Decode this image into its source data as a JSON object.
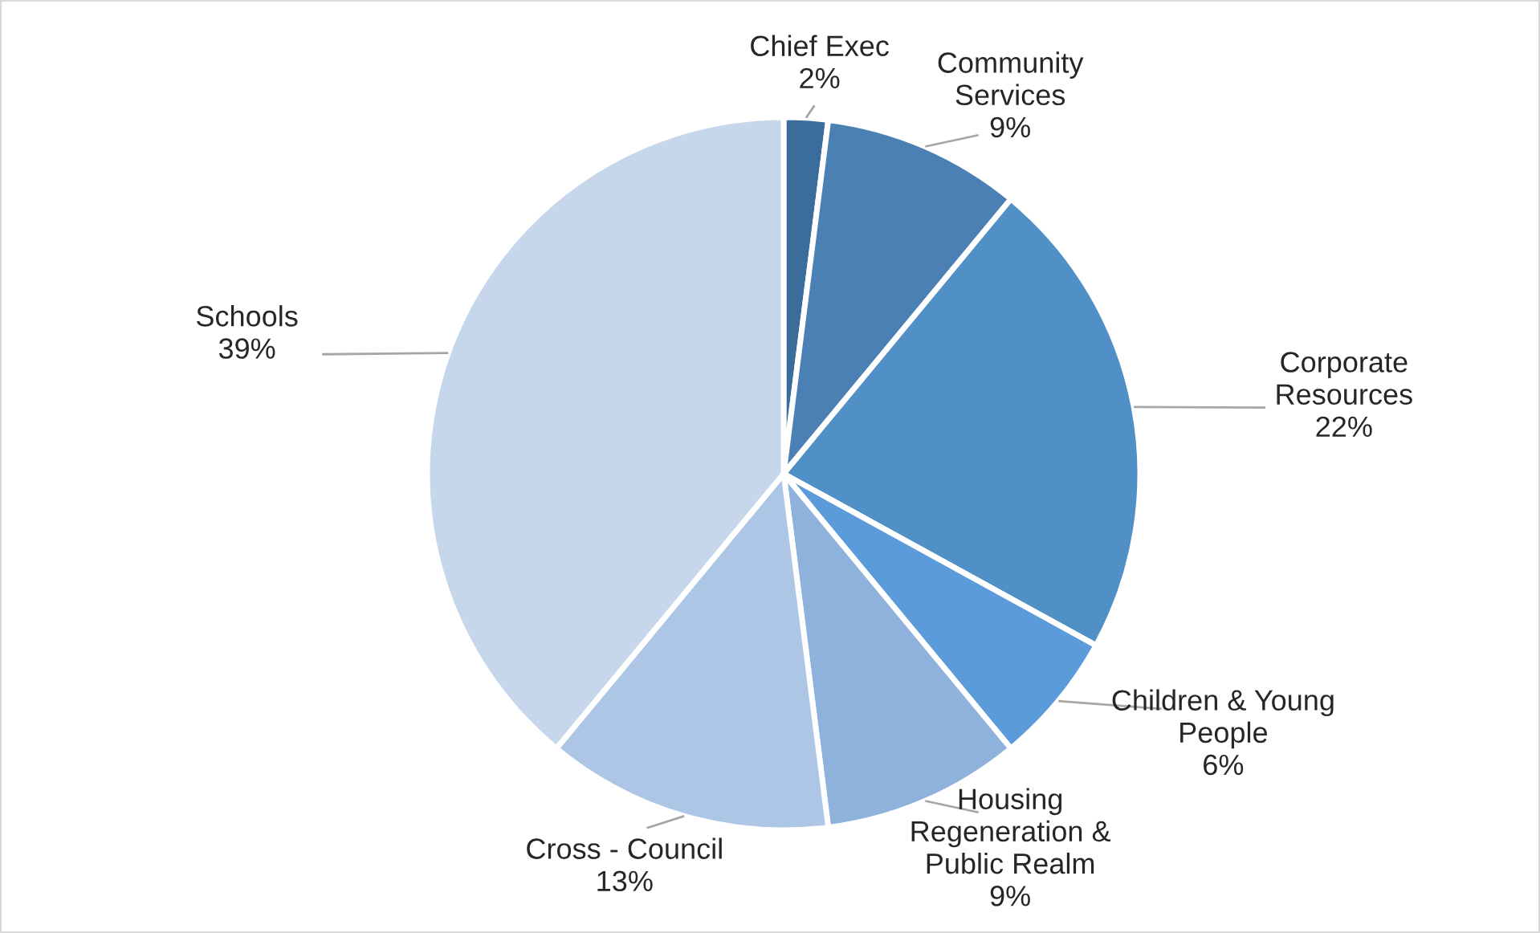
{
  "chart_data": {
    "type": "pie",
    "categories": [
      "Chief Exec",
      "Community\nServices",
      "Corporate\nResources",
      "Children & Young\nPeople",
      "Housing\nRegeneration &\nPublic Realm",
      "Cross - Council",
      "Schools"
    ],
    "values": [
      2,
      9,
      22,
      6,
      9,
      13,
      39
    ],
    "value_labels": [
      "2%",
      "9%",
      "22%",
      "6%",
      "9%",
      "13%",
      "39%"
    ],
    "colors": [
      "#3b6d9c",
      "#4a80b3",
      "#5190c6",
      "#5b9bd9",
      "#8fb2dd",
      "#adc6e6",
      "#c6d7ec"
    ],
    "legend": false
  }
}
